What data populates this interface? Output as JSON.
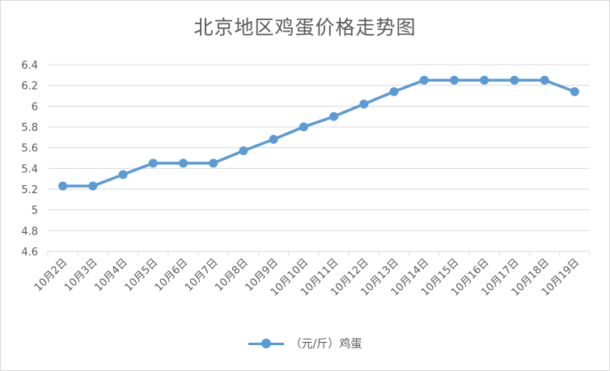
{
  "chart_data": {
    "type": "line",
    "title": "北京地区鸡蛋价格走势图",
    "categories": [
      "10月2日",
      "10月3日",
      "10月4日",
      "10月5日",
      "10月6日",
      "10月7日",
      "10月8日",
      "10月9日",
      "10月10日",
      "10月11日",
      "10月12日",
      "10月13日",
      "10月14日",
      "10月15日",
      "10月16日",
      "10月17日",
      "10月18日",
      "10月19日"
    ],
    "series": [
      {
        "name": "（元/斤）鸡蛋",
        "values": [
          5.23,
          5.23,
          5.34,
          5.45,
          5.45,
          5.45,
          5.57,
          5.68,
          5.8,
          5.9,
          6.02,
          6.14,
          6.25,
          6.25,
          6.25,
          6.25,
          6.25,
          6.14
        ]
      }
    ],
    "ylim": [
      4.6,
      6.4
    ],
    "yticks": [
      "4.6",
      "4.8",
      "5",
      "5.2",
      "5.4",
      "5.6",
      "5.8",
      "6",
      "6.2",
      "6.4"
    ],
    "grid": true,
    "legend_position": "bottom",
    "colors": {
      "series": "#5b9bd5",
      "grid": "#d9d9d9",
      "text": "#595959"
    }
  }
}
